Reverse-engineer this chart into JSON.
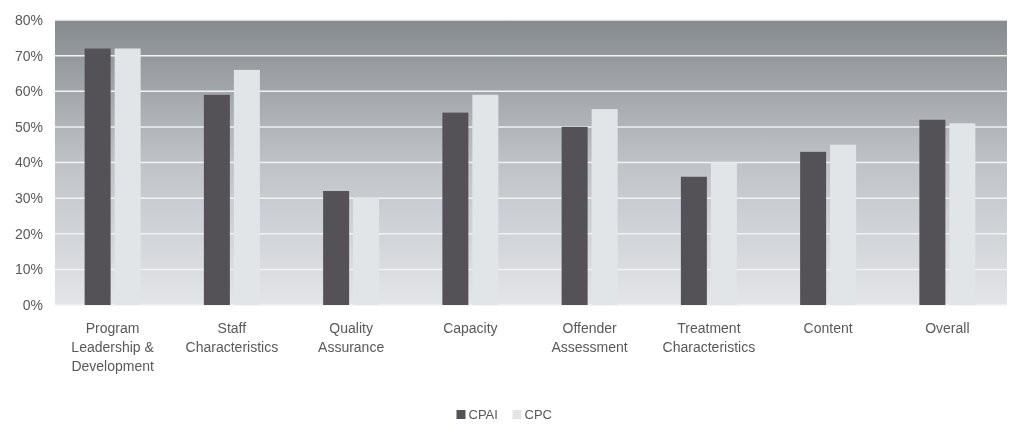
{
  "chart_data": {
    "type": "bar",
    "categories": [
      "Program Leadership & Development",
      "Staff Characteristics",
      "Quality Assurance",
      "Capacity",
      "Offender Assessment",
      "Treatment Characteristics",
      "Content",
      "Overall"
    ],
    "series": [
      {
        "name": "CPAI",
        "color": "#545257",
        "values": [
          72,
          59,
          32,
          54,
          50,
          36,
          43,
          52
        ]
      },
      {
        "name": "CPC",
        "color": "#e2e5e8",
        "values": [
          72,
          66,
          30,
          59,
          55,
          40,
          45,
          51
        ]
      }
    ],
    "ylim": [
      0,
      80
    ],
    "yticks": [
      {
        "value": 0,
        "label": "0%"
      },
      {
        "value": 10,
        "label": "10%"
      },
      {
        "value": 20,
        "label": "20%"
      },
      {
        "value": 30,
        "label": "30%"
      },
      {
        "value": 40,
        "label": "40%"
      },
      {
        "value": 50,
        "label": "50%"
      },
      {
        "value": 60,
        "label": "60%"
      },
      {
        "value": 70,
        "label": "70%"
      },
      {
        "value": 80,
        "label": "80%"
      }
    ],
    "grid": "y",
    "legend": "bottom"
  }
}
